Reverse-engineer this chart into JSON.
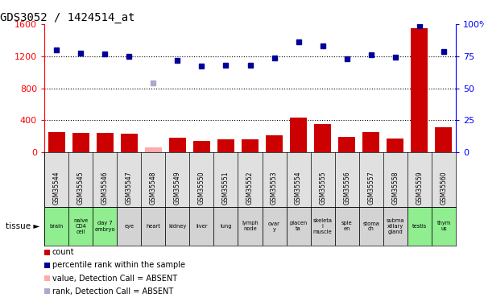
{
  "title": "GDS3052 / 1424514_at",
  "samples": [
    "GSM35544",
    "GSM35545",
    "GSM35546",
    "GSM35547",
    "GSM35548",
    "GSM35549",
    "GSM35550",
    "GSM35551",
    "GSM35552",
    "GSM35553",
    "GSM35554",
    "GSM35555",
    "GSM35556",
    "GSM35557",
    "GSM35558",
    "GSM35559",
    "GSM35560"
  ],
  "tissues": [
    "brain",
    "naive\nCD4\ncell",
    "day 7\nembryо",
    "eye",
    "heart",
    "kidney",
    "liver",
    "lung",
    "lymph\nnode",
    "ovar\ny",
    "placen\nta",
    "skeleta\nl\nmuscle",
    "sple\nen",
    "stoma\nch",
    "subma\nxillary\ngland",
    "testis",
    "thym\nus"
  ],
  "tissue_colors": [
    "#90ee90",
    "#90ee90",
    "#90ee90",
    "#d3d3d3",
    "#d3d3d3",
    "#d3d3d3",
    "#d3d3d3",
    "#d3d3d3",
    "#d3d3d3",
    "#d3d3d3",
    "#d3d3d3",
    "#d3d3d3",
    "#d3d3d3",
    "#d3d3d3",
    "#d3d3d3",
    "#90ee90",
    "#90ee90"
  ],
  "bar_values": [
    250,
    240,
    240,
    235,
    60,
    180,
    140,
    160,
    160,
    210,
    430,
    350,
    190,
    250,
    175,
    1550,
    310
  ],
  "bar_absent": [
    false,
    false,
    false,
    false,
    true,
    false,
    false,
    false,
    false,
    false,
    false,
    false,
    false,
    false,
    false,
    false,
    false
  ],
  "rank_values": [
    1280,
    1240,
    1230,
    1200,
    870,
    1150,
    1080,
    1090,
    1090,
    1180,
    1380,
    1330,
    1170,
    1220,
    1190,
    1575,
    1260
  ],
  "rank_absent": [
    false,
    false,
    false,
    false,
    true,
    false,
    false,
    false,
    false,
    false,
    false,
    false,
    false,
    false,
    false,
    false,
    false
  ],
  "ylim_left": [
    0,
    1600
  ],
  "ylim_right": [
    0,
    100
  ],
  "yticks_left": [
    0,
    400,
    800,
    1200,
    1600
  ],
  "yticks_right": [
    0,
    25,
    50,
    75,
    100
  ],
  "bar_color_normal": "#cc0000",
  "bar_color_absent": "#ffaaaa",
  "dot_color_normal": "#000099",
  "dot_color_absent": "#aaaacc",
  "bg_color": "#ffffff",
  "sample_bg": "#e0e0e0",
  "legend_items": [
    {
      "color": "#cc0000",
      "label": "count"
    },
    {
      "color": "#000099",
      "label": "percentile rank within the sample"
    },
    {
      "color": "#ffaaaa",
      "label": "value, Detection Call = ABSENT"
    },
    {
      "color": "#aaaacc",
      "label": "rank, Detection Call = ABSENT"
    }
  ]
}
